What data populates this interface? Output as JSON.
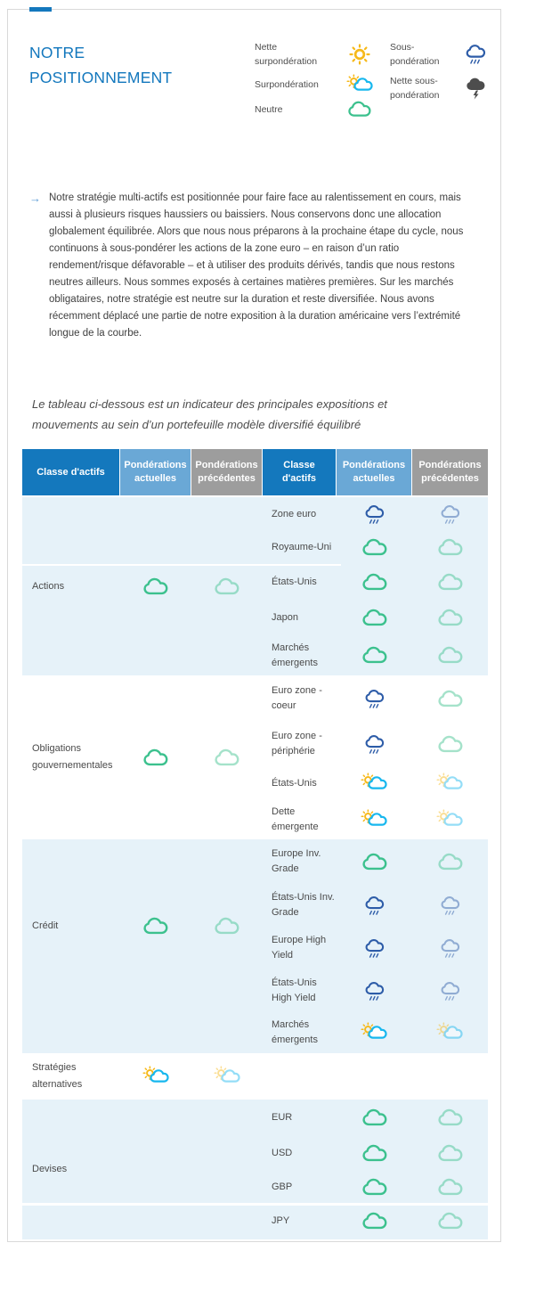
{
  "colors": {
    "accent_blue": "#1478bd",
    "title_blue": "#1277bd",
    "header_dark_blue": "#1478bd",
    "header_light_blue": "#6aa8d6",
    "header_gray": "#9d9d9d",
    "band_light_blue": "#e6f2f9",
    "cloud_green": "#3cc18e",
    "cloud_cyan": "#17b7ee",
    "rain_blue": "#2d5ca8",
    "sun_yellow": "#f6b91a",
    "storm_gray": "#4d4d4d",
    "arrow_blue": "#5b9bd5"
  },
  "title": "NOTRE POSITIONNEMENT",
  "legend": {
    "columns": [
      [
        {
          "label": "Nette surpondération",
          "icon": "sun"
        },
        {
          "label": "Surpondération",
          "icon": "sun-cloud"
        },
        {
          "label": "Neutre",
          "icon": "cloud-green"
        }
      ],
      [
        {
          "label": "Sous-pondération",
          "icon": "rain-cloud"
        },
        {
          "label": "Nette sous-pondération",
          "icon": "storm-cloud"
        }
      ]
    ]
  },
  "commentary": {
    "bullet": "→",
    "text": "Notre stratégie multi-actifs est positionnée pour faire face au ralentissement en cours, mais aussi à plusieurs risques haussiers ou baissiers. Nous conservons donc une allocation globalement équilibrée. Alors que nous nous préparons à la prochaine étape du cycle, nous continuons à sous-pondérer les actions de la zone euro – en raison d’un ratio rendement/risque défavorable – et à utiliser des produits dérivés, tandis que nous restons neutres ailleurs. Nous sommes exposés à certaines matières premières. Sur les marchés obligataires, notre stratégie est neutre sur la duration et reste diversifiée. Nous avons récemment déplacé une partie de notre exposition à la duration américaine vers l’extrémité longue de la courbe."
  },
  "table_note": "Le tableau ci-dessous est un indicateur des principales expositions et mouvements au sein d’un portefeuille modèle diversifié équilibré",
  "table": {
    "headers": [
      "Classe d'actifs",
      "Pondérations actuelles",
      "Pondérations précédentes",
      "Classe d'actifs",
      "Pondérations actuelles",
      "Pondérations précédentes"
    ],
    "sections": [
      {
        "name": "Actions",
        "current": "cloud-green",
        "previous": "cloud-green-faded",
        "rows": [
          {
            "label": "Zone euro",
            "current": "rain-cloud",
            "previous": "rain-cloud-faded"
          },
          {
            "label": "Royaume-Uni",
            "current": "cloud-green",
            "previous": "cloud-green-faded"
          },
          {
            "label": "États-Unis",
            "current": "cloud-green",
            "previous": "cloud-green-faded"
          },
          {
            "label": "Japon",
            "current": "cloud-green",
            "previous": "cloud-green-faded"
          },
          {
            "label": "Marchés émergents",
            "current": "cloud-green",
            "previous": "cloud-green-faded"
          }
        ]
      },
      {
        "name": "Obligations gouvernementales",
        "current": "cloud-green",
        "previous": "cloud-green-faded",
        "rows": [
          {
            "label": "Euro zone - coeur",
            "current": "rain-cloud",
            "previous": "cloud-green-faded"
          },
          {
            "label": "Euro zone - périphérie",
            "current": "rain-cloud",
            "previous": "cloud-green-faded"
          },
          {
            "label": "États-Unis",
            "current": "sun-cloud",
            "previous": "sun-cloud-faded"
          },
          {
            "label": "Dette émergente",
            "current": "sun-cloud",
            "previous": "sun-cloud-faded"
          }
        ]
      },
      {
        "name": "Crédit",
        "current": "cloud-green",
        "previous": "cloud-green-faded",
        "rows": [
          {
            "label": "Europe Inv. Grade",
            "current": "cloud-green",
            "previous": "cloud-green-faded"
          },
          {
            "label": "États-Unis Inv. Grade",
            "current": "rain-cloud",
            "previous": "rain-cloud-faded"
          },
          {
            "label": "Europe High Yield",
            "current": "rain-cloud",
            "previous": "rain-cloud-faded"
          },
          {
            "label": "États-Unis High Yield",
            "current": "rain-cloud",
            "previous": "rain-cloud-faded"
          },
          {
            "label": "Marchés émergents",
            "current": "sun-cloud",
            "previous": "sun-cloud-faded"
          }
        ]
      },
      {
        "name": "Stratégies alternatives",
        "current": "sun-cloud",
        "previous": "sun-cloud-faded",
        "rows": []
      },
      {
        "name": "Devises",
        "current": null,
        "previous": null,
        "rows": [
          {
            "label": "EUR",
            "current": "cloud-green",
            "previous": "cloud-green-faded"
          },
          {
            "label": "USD",
            "current": "cloud-green",
            "previous": "cloud-green-faded"
          },
          {
            "label": "GBP",
            "current": "cloud-green",
            "previous": "cloud-green-faded"
          },
          {
            "label": "JPY",
            "current": "cloud-green",
            "previous": "cloud-green-faded"
          }
        ]
      }
    ]
  }
}
